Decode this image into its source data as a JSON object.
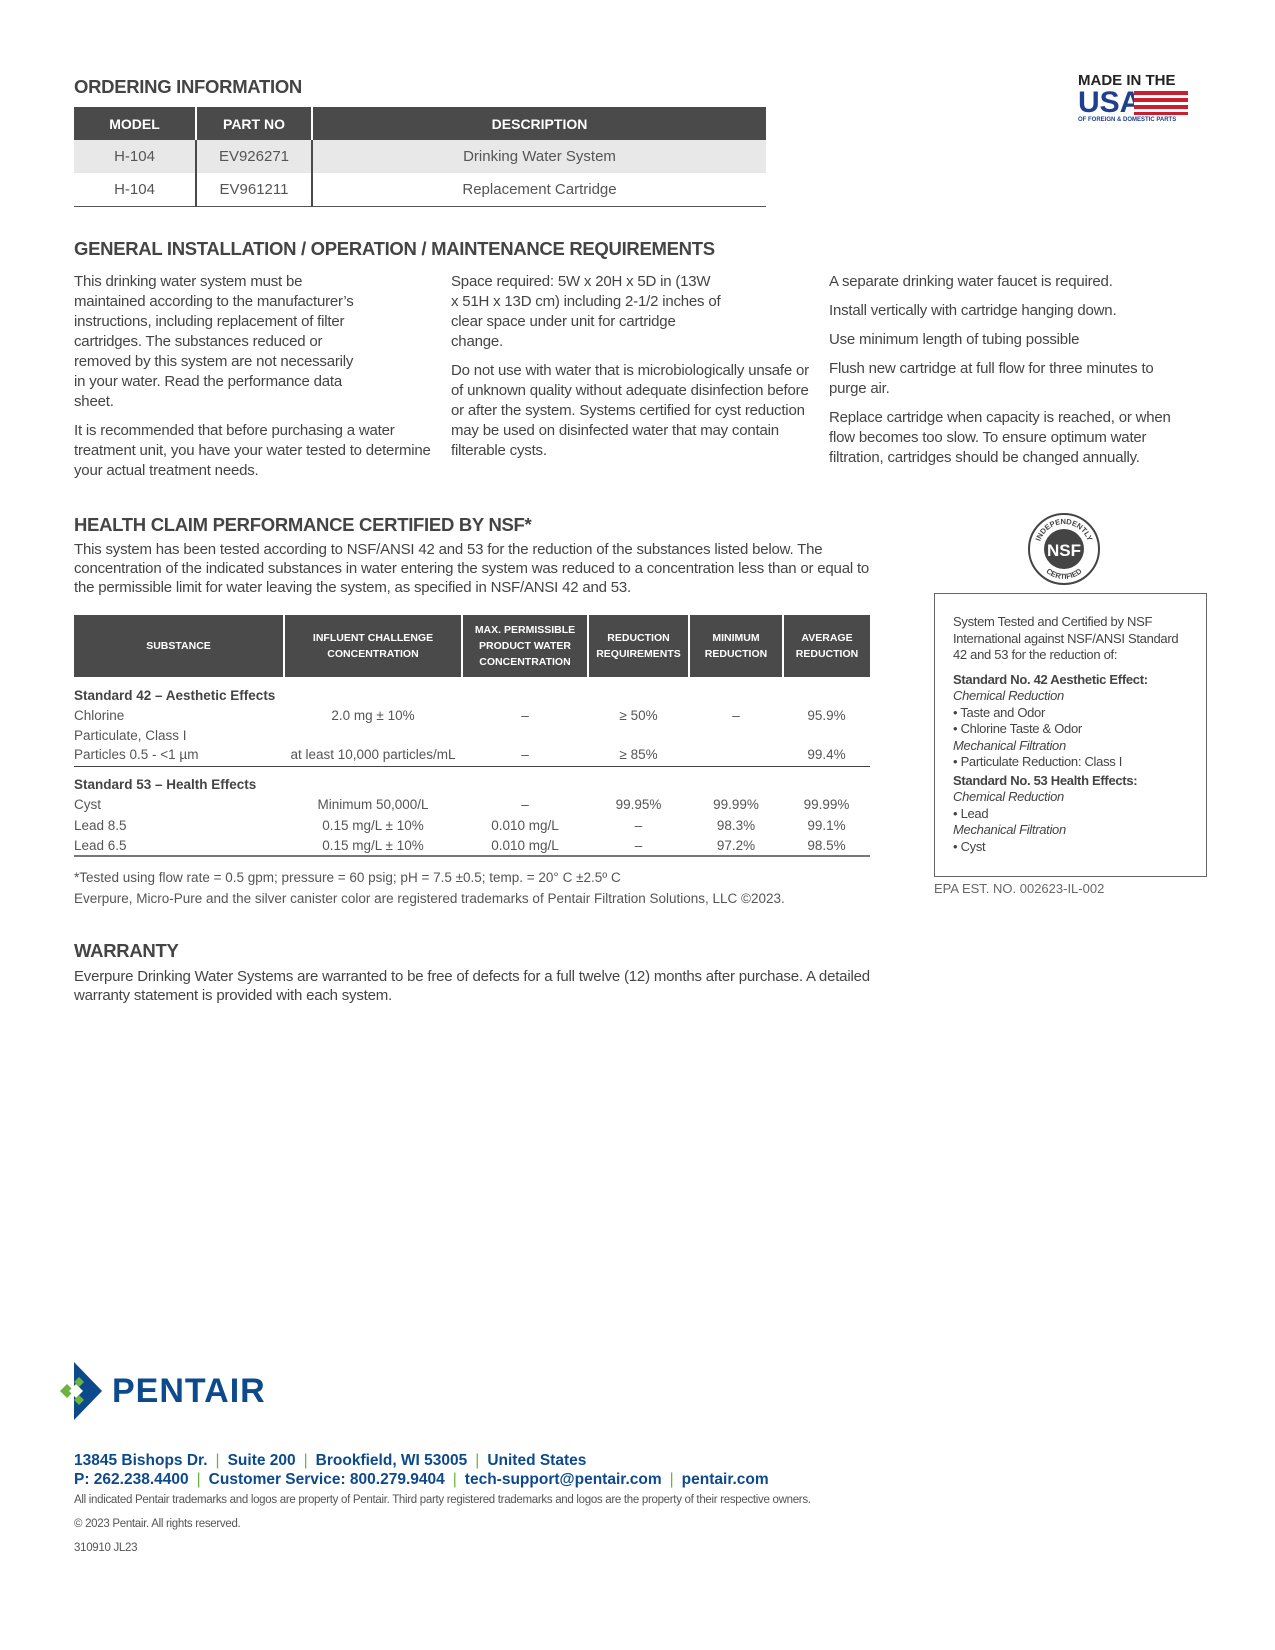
{
  "ordering": {
    "title": "ORDERING INFORMATION",
    "headers": [
      "MODEL",
      "PART NO",
      "DESCRIPTION"
    ],
    "rows": [
      [
        "H-104",
        "EV926271",
        "Drinking Water System"
      ],
      [
        "H-104",
        "EV961211",
        "Replacement Cartridge"
      ]
    ]
  },
  "made_in_usa": {
    "line1": "MADE IN THE",
    "line2": "USA",
    "line3": "OF FOREIGN & DOMESTIC PARTS"
  },
  "general": {
    "title": "GENERAL INSTALLATION / OPERATION / MAINTENANCE REQUIREMENTS",
    "col1": [
      "This drinking water system must be maintained according to the manufacturer’s instructions, including replacement of filter cartridges. The substances reduced or removed by this system are not necessarily in your water. Read the performance data sheet.",
      "It is recommended that before purchasing a water treatment unit, you have your water tested to determine your actual treatment needs."
    ],
    "col2": [
      "Space required: 5W x 20H x 5D in (13W x 51H x 13D cm) including 2-1/2 inches of clear space under unit for cartridge change.",
      "Do not use with water that is microbiologically unsafe or of unknown quality without adequate disinfection before or after the system. Systems certified for cyst reduction may be used on disinfected water that may contain filterable cysts."
    ],
    "col3": [
      "A separate drinking water faucet is required.",
      "Install vertically with cartridge hanging down.",
      "Use minimum length of tubing possible",
      "Flush new cartridge at full flow for three minutes to purge air.",
      "Replace cartridge when capacity is reached, or when flow becomes too slow. To ensure optimum water filtration, cartridges should be changed annually."
    ]
  },
  "health": {
    "title": "HEALTH CLAIM PERFORMANCE CERTIFIED BY NSF*",
    "intro": "This system has been tested according to NSF/ANSI 42 and 53 for the reduction of the substances listed below. The concentration of the indicated substances in water entering the system was reduced to a concentration less than or equal to the permissible limit for water leaving the system, as specified in NSF/ANSI 42 and 53.",
    "headers": [
      "SUBSTANCE",
      "INFLUENT CHALLENGE CONCENTRATION",
      "MAX. PERMISSIBLE PRODUCT WATER CONCENTRATION",
      "REDUCTION REQUIREMENTS",
      "MINIMUM REDUCTION",
      "AVERAGE REDUCTION"
    ],
    "group1": "Standard 42 – Aesthetic Effects",
    "rows1": [
      [
        "Chlorine",
        "2.0 mg ± 10%",
        "–",
        "≥ 50%",
        "–",
        "95.9%"
      ],
      [
        "Particulate, Class I",
        "",
        "",
        "",
        "",
        ""
      ],
      [
        "Particles 0.5 - <1 µm",
        "at least 10,000 particles/mL",
        "–",
        "≥ 85%",
        "",
        "99.4%"
      ]
    ],
    "group2": "Standard 53 – Health Effects",
    "rows2": [
      [
        "Cyst",
        "Minimum 50,000/L",
        "–",
        "99.95%",
        "99.99%",
        "99.99%"
      ],
      [
        "Lead 8.5",
        "0.15 mg/L ± 10%",
        "0.010 mg/L",
        "–",
        "98.3%",
        "99.1%"
      ],
      [
        "Lead 6.5",
        "0.15 mg/L ± 10%",
        "0.010 mg/L",
        "–",
        "97.2%",
        "98.5%"
      ]
    ],
    "footnote": "*Tested using flow rate = 0.5 gpm; pressure = 60 psig; pH = 7.5 ±0.5; temp. = 20° C ±2.5º C",
    "trademark": "Everpure, Micro-Pure and the silver canister color are registered trademarks of Pentair Filtration Solutions, LLC ©2023."
  },
  "nsf_seal": {
    "top": "INDEPENDENTLY",
    "center": "NSF",
    "bottom": "CERTIFIED"
  },
  "cert_box": {
    "intro": "System Tested and Certified by NSF International against NSF/ANSI Standard 42 and 53 for the reduction of:",
    "s42": "Standard No. 42 Aesthetic Effect:",
    "chem": "Chemical Reduction",
    "i1": "• Taste and Odor",
    "i2": "• Chlorine Taste & Odor",
    "mech": "Mechanical Filtration",
    "i3": "• Particulate Reduction: Class I",
    "s53": "Standard No. 53 Health Effects:",
    "i4": "• Lead",
    "i5": "• Cyst",
    "epa": "EPA EST. NO. 002623-IL-002"
  },
  "warranty": {
    "title": "WARRANTY",
    "text": "Everpure Drinking Water Systems are warranted to be free of defects for a full twelve (12) months after purchase. A detailed warranty statement is provided with each system."
  },
  "footer": {
    "brand": "PENTAIR",
    "addr": [
      "13845 Bishops Dr.",
      "Suite 200",
      "Brookfield, WI 53005",
      "United States"
    ],
    "contact": [
      "P: 262.238.4400",
      "Customer Service: 800.279.9404",
      "tech-support@pentair.com",
      "pentair.com"
    ],
    "legal": "All indicated Pentair trademarks and logos are property of Pentair. Third party registered trademarks and logos are the property of their respective owners.",
    "copyright": "© 2023 Pentair.  All rights reserved.",
    "code": "310910 JL23",
    "colors": {
      "blue": "#0d4a8c",
      "green": "#6cb33f"
    }
  }
}
